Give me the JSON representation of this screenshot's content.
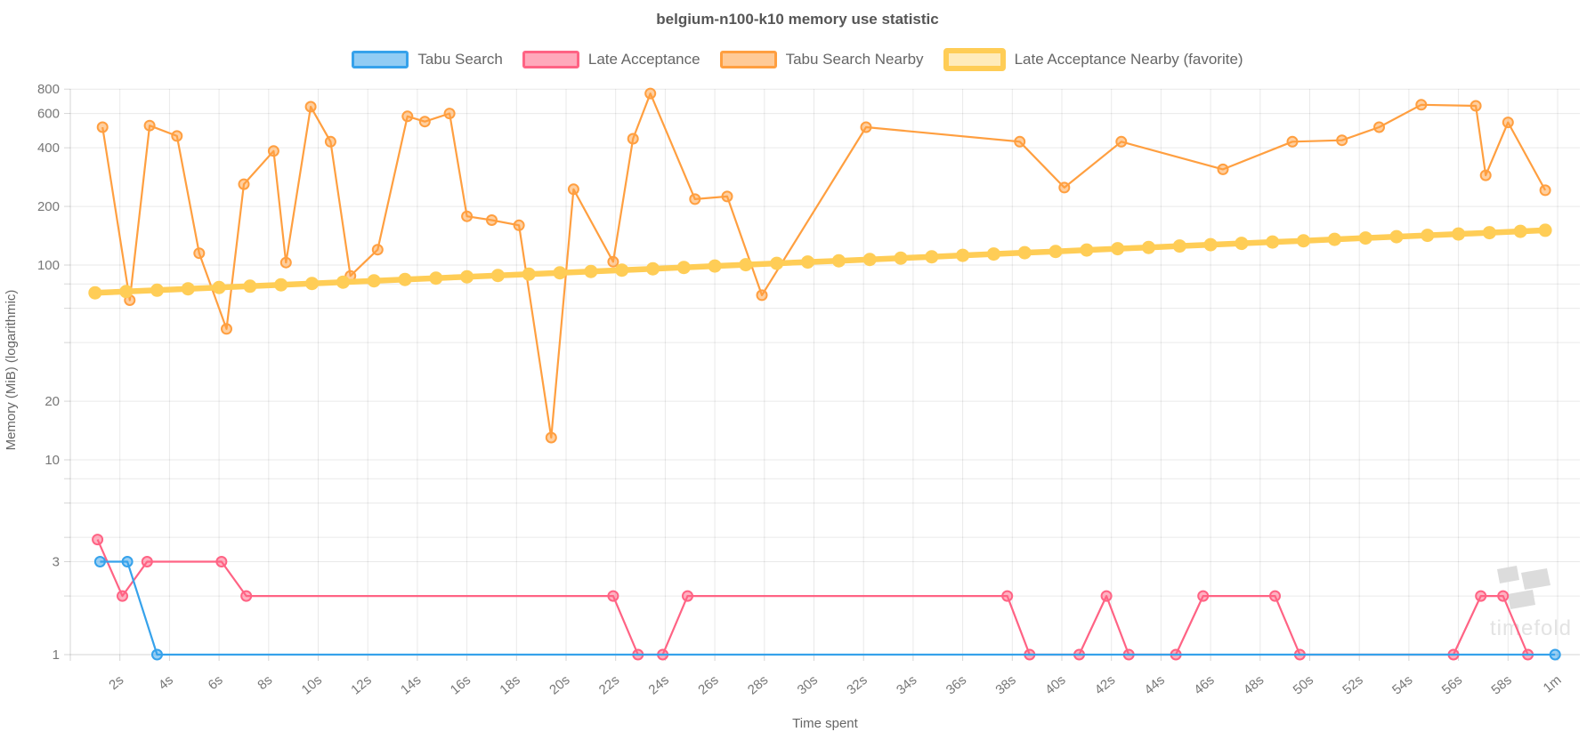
{
  "chart": {
    "title": "belgium-n100-k10 memory use statistic",
    "x_axis_title": "Time spent",
    "y_axis_title": "Memory (MiB) (logarithmic)",
    "watermark_text": "timefold",
    "colors": {
      "grid": "rgba(0,0,0,0.085)",
      "axis_border": "rgba(0,0,0,0.16)",
      "tick_text": "#777777",
      "title_text": "#565656",
      "watermark": "#dcdcdc"
    }
  },
  "chart_data": {
    "type": "line",
    "title": "belgium-n100-k10 memory use statistic",
    "xlabel": "Time spent",
    "ylabel": "Memory (MiB) (logarithmic)",
    "y_scale": "logarithmic",
    "ylim": [
      1,
      900
    ],
    "xlim_seconds": [
      0,
      61
    ],
    "grid": true,
    "legend_position": "top",
    "x_ticks": [
      {
        "t": 2,
        "label": "2s"
      },
      {
        "t": 4,
        "label": "4s"
      },
      {
        "t": 6,
        "label": "6s"
      },
      {
        "t": 8,
        "label": "8s"
      },
      {
        "t": 10,
        "label": "10s"
      },
      {
        "t": 12,
        "label": "12s"
      },
      {
        "t": 14,
        "label": "14s"
      },
      {
        "t": 16,
        "label": "16s"
      },
      {
        "t": 18,
        "label": "18s"
      },
      {
        "t": 20,
        "label": "20s"
      },
      {
        "t": 22,
        "label": "22s"
      },
      {
        "t": 24,
        "label": "24s"
      },
      {
        "t": 26,
        "label": "26s"
      },
      {
        "t": 28,
        "label": "28s"
      },
      {
        "t": 30,
        "label": "30s"
      },
      {
        "t": 32,
        "label": "32s"
      },
      {
        "t": 34,
        "label": "34s"
      },
      {
        "t": 36,
        "label": "36s"
      },
      {
        "t": 38,
        "label": "38s"
      },
      {
        "t": 40,
        "label": "40s"
      },
      {
        "t": 42,
        "label": "42s"
      },
      {
        "t": 44,
        "label": "44s"
      },
      {
        "t": 46,
        "label": "46s"
      },
      {
        "t": 48,
        "label": "48s"
      },
      {
        "t": 50,
        "label": "50s"
      },
      {
        "t": 52,
        "label": "52s"
      },
      {
        "t": 54,
        "label": "54s"
      },
      {
        "t": 56,
        "label": "56s"
      },
      {
        "t": 58,
        "label": "58s"
      },
      {
        "t": 60,
        "label": "1m"
      }
    ],
    "y_gridline_values": [
      1,
      2,
      3,
      4,
      6,
      8,
      10,
      20,
      40,
      60,
      80,
      100,
      200,
      400,
      600,
      800
    ],
    "y_ticks": [
      {
        "v": 800,
        "label": "800"
      },
      {
        "v": 600,
        "label": "600"
      },
      {
        "v": 400,
        "label": "400"
      },
      {
        "v": 200,
        "label": "200"
      },
      {
        "v": 100,
        "label": "100"
      },
      {
        "v": 20,
        "label": "20"
      },
      {
        "v": 10,
        "label": "10"
      },
      {
        "v": 3,
        "label": "3"
      },
      {
        "v": 1,
        "label": "1"
      }
    ],
    "series": [
      {
        "name": "Tabu Search",
        "color": "#36A2EB",
        "favorite": false,
        "draw_order": 3,
        "points": [
          [
            1.2,
            3
          ],
          [
            2.3,
            3
          ],
          [
            3.5,
            1
          ],
          [
            59.9,
            1
          ]
        ]
      },
      {
        "name": "Late Acceptance",
        "color": "#FF6384",
        "favorite": false,
        "draw_order": 2,
        "points": [
          [
            1.1,
            3.9
          ],
          [
            2.1,
            2
          ],
          [
            3.1,
            3
          ],
          [
            6.1,
            3
          ],
          [
            7.1,
            2
          ],
          [
            21.9,
            2
          ],
          [
            22.9,
            1
          ],
          [
            23.9,
            1
          ],
          [
            24.9,
            2
          ],
          [
            37.8,
            2
          ],
          [
            38.7,
            1
          ],
          [
            40.7,
            1
          ],
          [
            41.8,
            2
          ],
          [
            42.7,
            1
          ],
          [
            44.6,
            1
          ],
          [
            45.7,
            2
          ],
          [
            48.6,
            2
          ],
          [
            49.6,
            1
          ],
          [
            55.8,
            1
          ],
          [
            56.9,
            2
          ],
          [
            57.8,
            2
          ],
          [
            58.8,
            1
          ]
        ]
      },
      {
        "name": "Tabu Search Nearby",
        "color": "#FF9F40",
        "favorite": false,
        "draw_order": 0,
        "points": [
          [
            1.3,
            510
          ],
          [
            2.4,
            66
          ],
          [
            3.2,
            520
          ],
          [
            4.3,
            460
          ],
          [
            5.2,
            115
          ],
          [
            6.3,
            47
          ],
          [
            7.0,
            260
          ],
          [
            8.2,
            385
          ],
          [
            8.7,
            103
          ],
          [
            9.7,
            650
          ],
          [
            10.5,
            430
          ],
          [
            11.3,
            88
          ],
          [
            12.4,
            120
          ],
          [
            13.6,
            580
          ],
          [
            14.3,
            545
          ],
          [
            15.3,
            600
          ],
          [
            16.0,
            178
          ],
          [
            17.0,
            170
          ],
          [
            18.1,
            160
          ],
          [
            19.4,
            13
          ],
          [
            20.3,
            245
          ],
          [
            21.9,
            104
          ],
          [
            22.7,
            445
          ],
          [
            23.4,
            760
          ],
          [
            25.2,
            218
          ],
          [
            26.5,
            225
          ],
          [
            27.9,
            70
          ],
          [
            32.1,
            510
          ],
          [
            38.3,
            430
          ],
          [
            40.1,
            250
          ],
          [
            42.4,
            430
          ],
          [
            46.5,
            310
          ],
          [
            49.3,
            430
          ],
          [
            51.3,
            437
          ],
          [
            52.8,
            510
          ],
          [
            54.5,
            665
          ],
          [
            56.7,
            657
          ],
          [
            57.1,
            289
          ],
          [
            58.0,
            540
          ],
          [
            59.5,
            242
          ]
        ]
      },
      {
        "name": "Late Acceptance Nearby (favorite)",
        "color": "#FFCD56",
        "favorite": true,
        "draw_order": 1,
        "points": [
          [
            1,
            72
          ],
          [
            2.25,
            73.1
          ],
          [
            3.5,
            74.3
          ],
          [
            4.75,
            75.5
          ],
          [
            6,
            76.7
          ],
          [
            7.25,
            77.9
          ],
          [
            8.5,
            79.2
          ],
          [
            9.75,
            80.4
          ],
          [
            11,
            81.7
          ],
          [
            12.25,
            83
          ],
          [
            13.5,
            84.3
          ],
          [
            14.75,
            85.7
          ],
          [
            16,
            87
          ],
          [
            17.25,
            88.4
          ],
          [
            18.5,
            89.8
          ],
          [
            19.75,
            91.3
          ],
          [
            21,
            92.7
          ],
          [
            22.25,
            94.2
          ],
          [
            23.5,
            95.7
          ],
          [
            24.75,
            97.2
          ],
          [
            26,
            98.8
          ],
          [
            27.25,
            100.4
          ],
          [
            28.5,
            102
          ],
          [
            29.75,
            103.6
          ],
          [
            31,
            105.2
          ],
          [
            32.25,
            106.9
          ],
          [
            33.5,
            108.6
          ],
          [
            34.75,
            110.3
          ],
          [
            36,
            112.1
          ],
          [
            37.25,
            113.9
          ],
          [
            38.5,
            115.7
          ],
          [
            39.75,
            117.5
          ],
          [
            41,
            119.4
          ],
          [
            42.25,
            121.3
          ],
          [
            43.5,
            123.2
          ],
          [
            44.75,
            125.2
          ],
          [
            46,
            127.2
          ],
          [
            47.25,
            129.2
          ],
          [
            48.5,
            131.3
          ],
          [
            49.75,
            133.3
          ],
          [
            51,
            135.5
          ],
          [
            52.25,
            137.6
          ],
          [
            53.5,
            139.8
          ],
          [
            54.75,
            142
          ],
          [
            56,
            144.3
          ],
          [
            57.25,
            146.6
          ],
          [
            58.5,
            148.9
          ],
          [
            59.5,
            150.8
          ]
        ]
      }
    ]
  }
}
